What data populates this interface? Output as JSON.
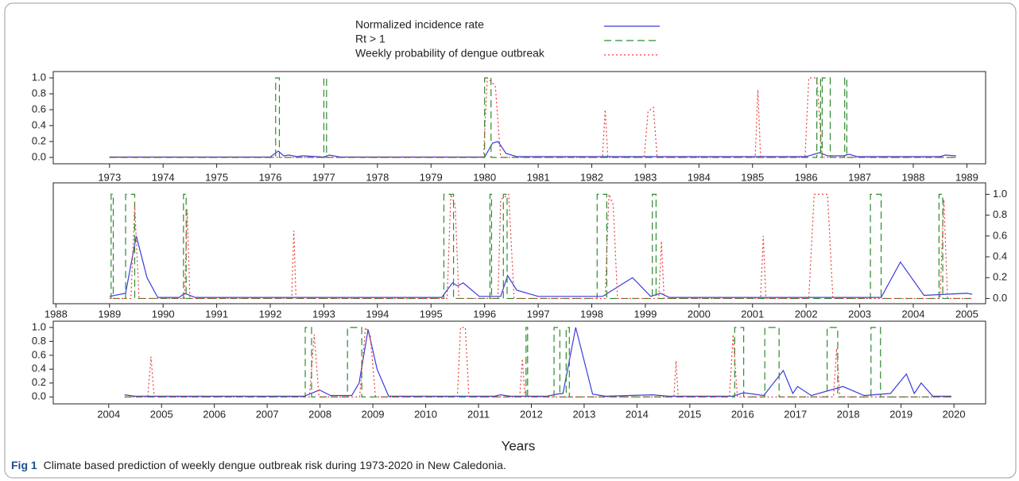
{
  "chart_data": [
    {
      "type": "line",
      "xlim": [
        1971.95,
        1989.35
      ],
      "xticks": [
        1973,
        1974,
        1975,
        1976,
        1977,
        1978,
        1979,
        1980,
        1981,
        1982,
        1983,
        1984,
        1985,
        1986,
        1987,
        1988,
        1989
      ],
      "ylim": [
        -0.08,
        1.08
      ],
      "yaxis_position": "left",
      "yticks": [
        {
          "value": 0,
          "label": "0.0"
        },
        {
          "value": 0.2,
          "label": "0.2"
        },
        {
          "value": 0.4,
          "label": "0.4"
        },
        {
          "value": 0.6,
          "label": "0.6"
        },
        {
          "value": 0.8,
          "label": "0.8"
        },
        {
          "value": 1,
          "label": "1.0"
        }
      ],
      "series": [
        {
          "name": "Normalized incidence rate",
          "color": "#3b3be0",
          "dash": "solid",
          "x": [
            1973,
            1976.0,
            1976.15,
            1976.25,
            1976.35,
            1976.5,
            1976.6,
            1977.0,
            1977.1,
            1977.3,
            1980.0,
            1980.15,
            1980.25,
            1980.4,
            1980.6,
            1986.0,
            1986.25,
            1986.4,
            1986.7,
            1986.8,
            1986.95,
            1988.5,
            1988.6,
            1988.8
          ],
          "values": [
            0.005,
            0.005,
            0.08,
            0.02,
            0.03,
            0.01,
            0.02,
            0.005,
            0.03,
            0.005,
            0.005,
            0.18,
            0.2,
            0.05,
            0.01,
            0.01,
            0.06,
            0.02,
            0.02,
            0.04,
            0.01,
            0.01,
            0.03,
            0.02
          ]
        },
        {
          "name": "Rt > 1",
          "color": "#2e8b2e",
          "dash": "dashed",
          "x": [
            1973,
            1976.1,
            1976.1,
            1976.17,
            1976.17,
            1977.0,
            1977.0,
            1977.05,
            1977.05,
            1980.0,
            1980.0,
            1980.12,
            1980.12,
            1986.2,
            1986.2,
            1986.27,
            1986.27,
            1986.3,
            1986.3,
            1986.45,
            1986.45,
            1986.72,
            1986.72,
            1986.76,
            1986.76,
            1988.8
          ],
          "values": [
            0,
            0,
            1,
            1,
            0,
            0,
            1,
            1,
            0,
            0,
            1,
            1,
            0,
            0,
            1,
            1,
            0,
            0,
            1,
            1,
            0,
            0,
            1,
            1,
            0,
            0
          ]
        },
        {
          "name": "Weekly probability of dengue outbreak",
          "color": "#e8403a",
          "dash": "dotted",
          "x": [
            1973,
            1979.98,
            1980.05,
            1980.2,
            1980.3,
            1982.2,
            1982.25,
            1982.3,
            1982.98,
            1983.05,
            1983.15,
            1983.22,
            1985.05,
            1985.1,
            1985.15,
            1985.98,
            1986.05,
            1986.2,
            1986.3,
            1988.8
          ],
          "values": [
            0,
            0,
            1.0,
            0.9,
            0,
            0,
            0.6,
            0,
            0,
            0.58,
            0.63,
            0,
            0,
            0.85,
            0,
            0,
            1.0,
            1.0,
            0,
            0
          ]
        }
      ]
    },
    {
      "type": "line",
      "xlim": [
        1987.95,
        2005.35
      ],
      "xticks": [
        1988,
        1989,
        1990,
        1991,
        1992,
        1993,
        1994,
        1995,
        1996,
        1997,
        1998,
        1999,
        2000,
        2001,
        2002,
        2003,
        2004,
        2005
      ],
      "ylim": [
        -0.05,
        1.11
      ],
      "yaxis_position": "right",
      "yticks": [
        {
          "value": 0,
          "label": "0.0"
        },
        {
          "value": 0.2,
          "label": "0.2"
        },
        {
          "value": 0.4,
          "label": "0.4"
        },
        {
          "value": 0.6,
          "label": "0.6"
        },
        {
          "value": 0.8,
          "label": "0.8"
        },
        {
          "value": 1,
          "label": "1.0"
        }
      ],
      "series": [
        {
          "color": "#3b3be0",
          "dash": "solid",
          "x": [
            1989.0,
            1989.3,
            1989.5,
            1989.7,
            1989.9,
            1990.3,
            1990.4,
            1990.6,
            1995.2,
            1995.4,
            1995.5,
            1995.6,
            1995.9,
            1996.3,
            1996.43,
            1996.6,
            1997.0,
            1998.2,
            1998.76,
            1999.1,
            1999.28,
            1999.45,
            2003.4,
            2003.76,
            2004.2,
            2005.0,
            2005.1
          ],
          "values": [
            0.02,
            0.05,
            0.6,
            0.2,
            0.01,
            0.01,
            0.05,
            0.01,
            0.01,
            0.15,
            0.12,
            0.15,
            0.02,
            0.02,
            0.22,
            0.08,
            0.02,
            0.02,
            0.2,
            0.02,
            0.05,
            0.01,
            0.01,
            0.35,
            0.03,
            0.05,
            0.04
          ]
        },
        {
          "color": "#2e8b2e",
          "dash": "dashed",
          "x": [
            1989.0,
            1989.03,
            1989.03,
            1989.07,
            1989.07,
            1989.3,
            1989.3,
            1989.47,
            1989.47,
            1990.38,
            1990.38,
            1990.43,
            1990.43,
            1995.24,
            1995.24,
            1995.42,
            1995.42,
            1996.1,
            1996.1,
            1996.13,
            1996.13,
            1996.35,
            1996.35,
            1996.42,
            1996.42,
            1998.1,
            1998.1,
            1998.28,
            1998.28,
            1999.13,
            1999.13,
            1999.2,
            1999.2,
            2003.2,
            2003.2,
            2003.4,
            2003.4,
            2004.48,
            2004.48,
            2004.55,
            2004.55,
            2005.1
          ],
          "values": [
            0,
            0,
            1,
            1,
            0,
            0,
            1,
            1,
            0,
            0,
            1,
            1,
            0,
            0,
            1,
            1,
            0,
            0,
            1,
            1,
            0,
            0,
            1,
            1,
            0,
            0,
            1,
            1,
            0,
            0,
            1,
            1,
            0,
            0,
            1,
            1,
            0,
            0,
            1,
            1,
            0,
            0
          ]
        },
        {
          "color": "#e8403a",
          "dash": "dotted",
          "x": [
            1989.0,
            1989.4,
            1989.47,
            1989.55,
            1990.4,
            1990.45,
            1990.5,
            1992.4,
            1992.44,
            1992.48,
            1995.3,
            1995.37,
            1995.45,
            1995.52,
            1996.25,
            1996.3,
            1996.45,
            1996.55,
            1998.25,
            1998.32,
            1998.4,
            1998.48,
            1999.25,
            1999.3,
            1999.35,
            2001.15,
            2001.2,
            2001.25,
            2002.05,
            2002.15,
            2002.4,
            2002.5,
            2004.5,
            2004.57,
            2004.64,
            2005.1
          ],
          "values": [
            0,
            0,
            0.9,
            0,
            0,
            0.85,
            0,
            0,
            0.65,
            0,
            0,
            1.0,
            0.9,
            0,
            0,
            0.95,
            1.0,
            0,
            0,
            1.0,
            0.9,
            0,
            0,
            0.55,
            0,
            0,
            0.6,
            0,
            0,
            1.0,
            1.0,
            0,
            0,
            0.95,
            0,
            0
          ]
        }
      ]
    },
    {
      "type": "line",
      "xlabel": "Years",
      "xlim": [
        2002.95,
        2020.6
      ],
      "xticks": [
        2004,
        2005,
        2006,
        2007,
        2008,
        2009,
        2010,
        2011,
        2012,
        2013,
        2014,
        2015,
        2016,
        2017,
        2018,
        2019,
        2020
      ],
      "ylim": [
        -0.1,
        1.09
      ],
      "yaxis_position": "left",
      "yticks": [
        {
          "value": 0,
          "label": "0.0"
        },
        {
          "value": 0.2,
          "label": "0.2"
        },
        {
          "value": 0.4,
          "label": "0.4"
        },
        {
          "value": 0.6,
          "label": "0.6"
        },
        {
          "value": 0.8,
          "label": "0.8"
        },
        {
          "value": 1,
          "label": "1.0"
        }
      ],
      "series": [
        {
          "color": "#3b3be0",
          "dash": "solid",
          "x": [
            2004.3,
            2004.5,
            2007.7,
            2007.99,
            2008.2,
            2008.6,
            2008.74,
            2008.91,
            2009.08,
            2009.3,
            2011.3,
            2011.42,
            2011.6,
            2012.3,
            2012.48,
            2012.6,
            2012.84,
            2013.16,
            2013.4,
            2014.29,
            2014.6,
            2015.8,
            2016.02,
            2016.4,
            2016.77,
            2016.95,
            2017.04,
            2017.3,
            2017.9,
            2018.3,
            2018.8,
            2019.1,
            2019.25,
            2019.38,
            2019.6,
            2019.95
          ],
          "values": [
            0.03,
            0.01,
            0.01,
            0.1,
            0.02,
            0.02,
            0.2,
            0.97,
            0.4,
            0.01,
            0.01,
            0.03,
            0.01,
            0.01,
            0.04,
            0.05,
            1.0,
            0.04,
            0.01,
            0.03,
            0.01,
            0.01,
            0.06,
            0.02,
            0.38,
            0.05,
            0.15,
            0.02,
            0.15,
            0.02,
            0.05,
            0.33,
            0.05,
            0.2,
            0.01,
            0.01
          ]
        },
        {
          "color": "#2e8b2e",
          "dash": "dashed",
          "x": [
            2004.3,
            2007.72,
            2007.72,
            2007.84,
            2007.84,
            2008.52,
            2008.52,
            2008.79,
            2008.79,
            2011.9,
            2011.9,
            2011.93,
            2011.93,
            2012.43,
            2012.43,
            2012.54,
            2012.54,
            2012.66,
            2012.66,
            2012.72,
            2012.72,
            2015.85,
            2015.85,
            2016.02,
            2016.02,
            2016.42,
            2016.42,
            2016.69,
            2016.69,
            2017.6,
            2017.6,
            2017.8,
            2017.8,
            2018.43,
            2018.43,
            2018.61,
            2018.61,
            2019.95
          ],
          "values": [
            0,
            0,
            1,
            1,
            0,
            0,
            1,
            1,
            0,
            0,
            1,
            1,
            0,
            0,
            1,
            1,
            0,
            0,
            1,
            1,
            0,
            0,
            1,
            1,
            0,
            0,
            1,
            1,
            0,
            0,
            1,
            1,
            0,
            0,
            1,
            1,
            0,
            0
          ]
        },
        {
          "color": "#e8403a",
          "dash": "dotted",
          "x": [
            2004.3,
            2004.74,
            2004.8,
            2004.86,
            2007.8,
            2007.89,
            2007.98,
            2008.75,
            2008.86,
            2008.95,
            2009.05,
            2010.6,
            2010.66,
            2010.75,
            2010.82,
            2011.78,
            2011.83,
            2011.88,
            2014.7,
            2014.74,
            2014.78,
            2015.75,
            2015.82,
            2015.9,
            2017.72,
            2017.78,
            2017.84,
            2019.95
          ],
          "values": [
            0,
            0,
            0.58,
            0,
            0,
            0.9,
            0,
            0,
            1.0,
            0.9,
            0,
            0,
            1.0,
            1.0,
            0,
            0,
            0.55,
            0,
            0,
            0.52,
            0,
            0,
            0.9,
            0,
            0,
            0.7,
            0,
            0
          ]
        }
      ]
    }
  ],
  "caption": {
    "label": "Fig 1",
    "text": "Climate based prediction of weekly dengue outbreak risk during 1973-2020 in New Caledonia."
  }
}
